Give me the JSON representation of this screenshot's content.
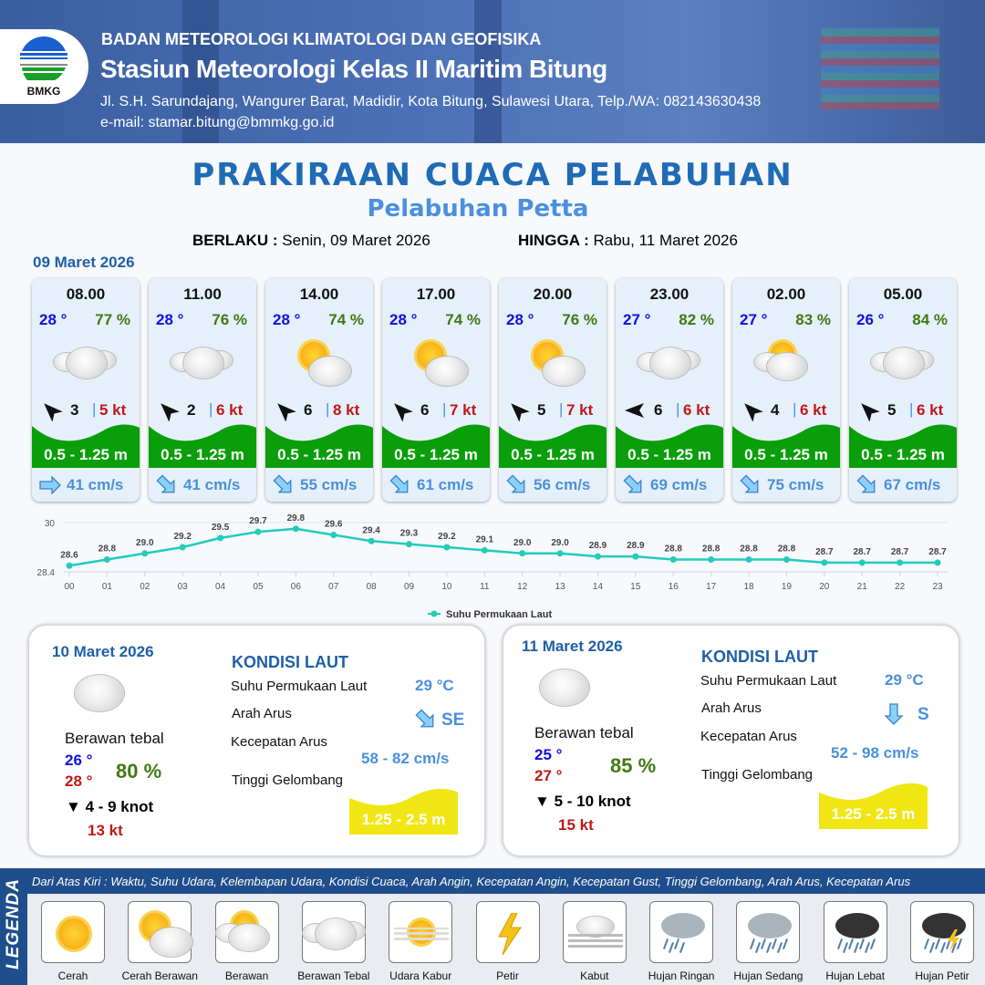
{
  "header": {
    "agency": "BADAN METEOROLOGI KLIMATOLOGI DAN GEOFISIKA",
    "station": "Stasiun Meteorologi Kelas II Maritim Bitung",
    "address": "Jl. S.H. Sarundajang, Wangurer Barat, Madidir, Kota Bitung, Sulawesi Utara, Telp./WA: 082143630438",
    "email": "e-mail: stamar.bitung@bmmkg.go.id",
    "logo_text": "BMKG"
  },
  "title": "PRAKIRAAN CUACA PELABUHAN",
  "subtitle": "Pelabuhan Petta",
  "validity": {
    "from_label": "BERLAKU :",
    "from": "Senin, 09 Maret 2026",
    "to_label": "HINGGA :",
    "to": "Rabu, 11 Maret 2026"
  },
  "day1_date": "09 Maret 2026",
  "hourly": [
    {
      "time": "08.00",
      "temp": "28 °",
      "hum": "77 %",
      "cond": "Berawan Tebal",
      "wind_dir_deg": 45,
      "wind": "3",
      "gust": "5 kt",
      "wave": "0.5 - 1.25 m",
      "cur_dir_deg": 90,
      "cur": "41 cm/s"
    },
    {
      "time": "11.00",
      "temp": "28 °",
      "hum": "76 %",
      "cond": "Berawan Tebal",
      "wind_dir_deg": 45,
      "wind": "2",
      "gust": "6 kt",
      "wave": "0.5 - 1.25 m",
      "cur_dir_deg": 135,
      "cur": "41 cm/s"
    },
    {
      "time": "14.00",
      "temp": "28 °",
      "hum": "74 %",
      "cond": "Cerah Berawan",
      "wind_dir_deg": 45,
      "wind": "6",
      "gust": "8 kt",
      "wave": "0.5 - 1.25 m",
      "cur_dir_deg": 135,
      "cur": "55 cm/s"
    },
    {
      "time": "17.00",
      "temp": "28 °",
      "hum": "74 %",
      "cond": "Cerah Berawan",
      "wind_dir_deg": 45,
      "wind": "6",
      "gust": "7 kt",
      "wave": "0.5 - 1.25 m",
      "cur_dir_deg": 135,
      "cur": "61 cm/s"
    },
    {
      "time": "20.00",
      "temp": "28 °",
      "hum": "76 %",
      "cond": "Cerah Berawan",
      "wind_dir_deg": 45,
      "wind": "5",
      "gust": "7 kt",
      "wave": "0.5 - 1.25 m",
      "cur_dir_deg": 135,
      "cur": "56 cm/s"
    },
    {
      "time": "23.00",
      "temp": "27 °",
      "hum": "82 %",
      "cond": "Berawan Tebal",
      "wind_dir_deg": 0,
      "wind": "6",
      "gust": "6 kt",
      "wave": "0.5 - 1.25 m",
      "cur_dir_deg": 135,
      "cur": "69 cm/s"
    },
    {
      "time": "02.00",
      "temp": "27 °",
      "hum": "83 %",
      "cond": "Berawan",
      "wind_dir_deg": 45,
      "wind": "4",
      "gust": "6 kt",
      "wave": "0.5 - 1.25 m",
      "cur_dir_deg": 135,
      "cur": "75 cm/s"
    },
    {
      "time": "05.00",
      "temp": "26 °",
      "hum": "84 %",
      "cond": "Berawan Tebal",
      "wind_dir_deg": 45,
      "wind": "5",
      "gust": "6 kt",
      "wave": "0.5 - 1.25 m",
      "cur_dir_deg": 135,
      "cur": "67 cm/s"
    }
  ],
  "chart_data": {
    "type": "line",
    "x": [
      "00",
      "01",
      "02",
      "03",
      "04",
      "05",
      "06",
      "07",
      "08",
      "09",
      "10",
      "11",
      "12",
      "13",
      "14",
      "15",
      "16",
      "17",
      "18",
      "19",
      "20",
      "21",
      "22",
      "23"
    ],
    "series": [
      {
        "name": "Suhu Permukaan Laut",
        "values": [
          28.6,
          28.8,
          29.0,
          29.2,
          29.5,
          29.7,
          29.8,
          29.6,
          29.4,
          29.3,
          29.2,
          29.1,
          29.0,
          29.0,
          28.9,
          28.9,
          28.8,
          28.8,
          28.8,
          28.8,
          28.7,
          28.7,
          28.7,
          28.7
        ],
        "color": "#22ccbb"
      }
    ],
    "ylim": [
      28.4,
      30
    ],
    "yticks": [
      "30",
      "28.4"
    ],
    "legend": "bottom",
    "grid": true
  },
  "days": [
    {
      "date": "10 Maret 2026",
      "cond": "Berawan tebal",
      "tmin": "26 °",
      "tmax": "28 °",
      "hum": "80 %",
      "wind": "4  - 9 knot",
      "gust": "13 kt",
      "sea_title": "KONDISI LAUT",
      "sst_label": "Suhu Permukaan Laut",
      "sst": "29 °C",
      "dir_label": "Arah Arus",
      "dir": "SE",
      "dir_deg": 135,
      "spd_label": "Kecepatan Arus",
      "spd": "58 - 82 cm/s",
      "wave_label": "Tinggi Gelombang",
      "wave": "1.25 - 2.5 m"
    },
    {
      "date": "11 Maret 2026",
      "cond": "Berawan tebal",
      "tmin": "25 °",
      "tmax": "27 °",
      "hum": "85 %",
      "wind": "5  - 10 knot",
      "gust": "15 kt",
      "sea_title": "KONDISI LAUT",
      "sst_label": "Suhu Permukaan Laut",
      "sst": "29 °C",
      "dir_label": "Arah Arus",
      "dir": "S",
      "dir_deg": 180,
      "spd_label": "Kecepatan Arus",
      "spd": "52 - 98 cm/s",
      "wave_label": "Tinggi Gelombang",
      "wave": "1.25 - 2.5 m"
    }
  ],
  "legend": {
    "title": "LEGENDA",
    "note": "Dari Atas Kiri : Waktu, Suhu Udara, Kelembapan Udara, Kondisi Cuaca, Arah Angin, Kecepatan Angin, Kecepatan Gust, Tinggi Gelombang, Arah Arus, Kecepatan Arus",
    "items": [
      "Cerah",
      "Cerah Berawan",
      "Berawan",
      "Berawan Tebal",
      "Udara Kabur",
      "Petir",
      "Kabut",
      "Hujan Ringan",
      "Hujan Sedang",
      "Hujan Lebat",
      "Hujan Petir"
    ]
  },
  "colors": {
    "wave_low": "#0a9e0a",
    "wave_mid": "#f0e614",
    "title": "#1f6bb5",
    "subtitle": "#4a90e0"
  }
}
